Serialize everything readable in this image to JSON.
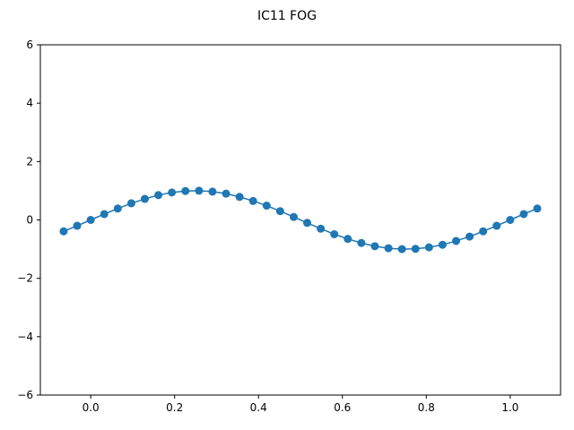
{
  "chart_data": {
    "type": "line",
    "title": "IC11 FOG",
    "xlabel": "",
    "ylabel": "",
    "xlim": [
      -0.12,
      1.12
    ],
    "ylim": [
      -6,
      6
    ],
    "x_ticks": [
      0.0,
      0.2,
      0.4,
      0.6,
      0.8,
      1.0
    ],
    "x_tick_labels": [
      "0.0",
      "0.2",
      "0.4",
      "0.6",
      "0.8",
      "1.0"
    ],
    "y_ticks": [
      -6,
      -4,
      -2,
      0,
      2,
      4,
      6
    ],
    "y_tick_labels": [
      "−6",
      "−4",
      "−2",
      "0",
      "2",
      "4",
      "6"
    ],
    "grid": false,
    "series": [
      {
        "color": "#1f77b4",
        "marker": "circle",
        "x": [
          -0.0645,
          -0.0323,
          0.0,
          0.0323,
          0.0645,
          0.0968,
          0.129,
          0.1613,
          0.1935,
          0.2258,
          0.2581,
          0.2903,
          0.3226,
          0.3548,
          0.3871,
          0.4194,
          0.4516,
          0.4839,
          0.5161,
          0.5484,
          0.5806,
          0.6129,
          0.6452,
          0.6774,
          0.7097,
          0.7419,
          0.7742,
          0.8065,
          0.8387,
          0.871,
          0.9032,
          0.9355,
          0.9677,
          1.0,
          1.0323,
          1.0645
        ],
        "y": [
          -0.39,
          -0.2,
          0.0,
          0.2,
          0.39,
          0.57,
          0.72,
          0.85,
          0.94,
          0.99,
          1.0,
          0.97,
          0.9,
          0.79,
          0.65,
          0.49,
          0.3,
          0.1,
          -0.1,
          -0.3,
          -0.49,
          -0.65,
          -0.79,
          -0.9,
          -0.97,
          -1.0,
          -0.99,
          -0.94,
          -0.85,
          -0.72,
          -0.57,
          -0.39,
          -0.2,
          0.0,
          0.2,
          0.39
        ]
      }
    ]
  }
}
